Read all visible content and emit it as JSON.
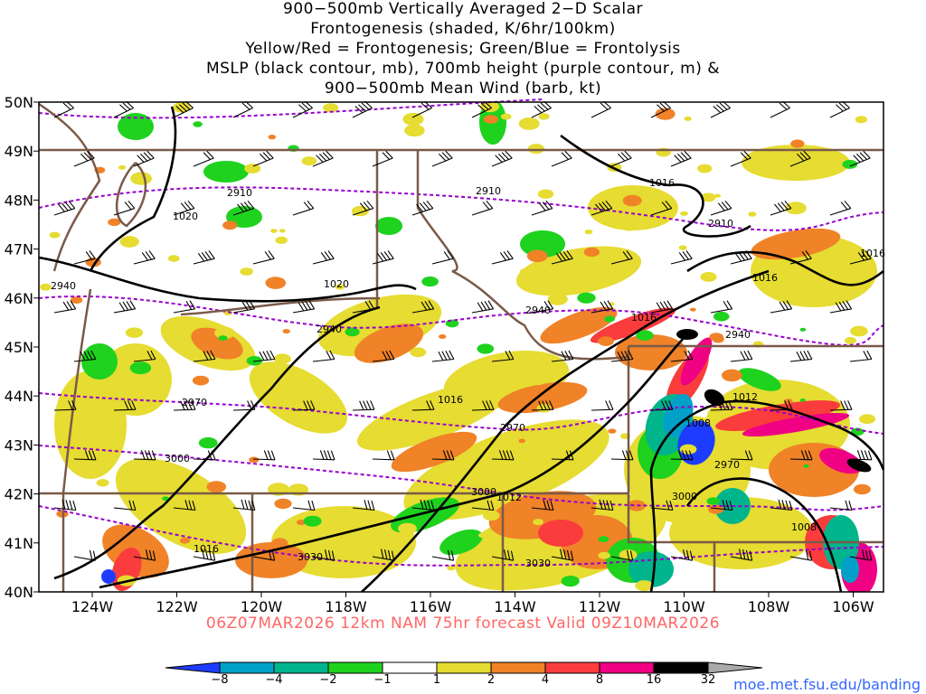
{
  "title": {
    "lines": [
      "900−500mb Vertically Averaged 2−D Scalar",
      "Frontogenesis (shaded, K/6hr/100km)",
      "Yellow/Red = Frontogenesis;  Green/Blue = Frontolysis",
      "MSLP (black contour, mb), 700mb height (purple contour, m) &",
      "900−500mb Mean Wind (barb, kt)"
    ]
  },
  "map": {
    "lat_labels": [
      "50N",
      "49N",
      "48N",
      "47N",
      "46N",
      "45N",
      "44N",
      "43N",
      "42N",
      "41N",
      "40N"
    ],
    "lon_labels": [
      "124W",
      "122W",
      "120W",
      "118W",
      "116W",
      "114W",
      "112W",
      "110W",
      "108W",
      "106W"
    ],
    "mslp_labels": [
      "1020",
      "1020",
      "1016",
      "1016",
      "1016",
      "1016",
      "1012",
      "1012",
      "1008",
      "1008",
      "1016",
      "1016"
    ],
    "height_labels": [
      "2910",
      "2910",
      "2910",
      "2940",
      "2940",
      "2940",
      "2940",
      "2970",
      "2970",
      "2970",
      "3000",
      "3000",
      "3000",
      "3030",
      "3030"
    ],
    "colors": {
      "state_border": "#7a5a48",
      "mslp": "#000000",
      "height": "#9900cc",
      "fronto_yellow": "#e6dc32",
      "fronto_orange": "#f08228",
      "fronto_red": "#fa3c3c",
      "fronto_magenta": "#f00082",
      "fronto_black": "#000000",
      "frontolysis_green": "#1ed21e",
      "frontolysis_teal": "#00b48c",
      "frontolysis_cyan": "#00a0c8",
      "frontolysis_blue": "#1e3cff"
    }
  },
  "valid_text": "06Z07MAR2026 12km NAM 75hr forecast Valid 09Z10MAR2026",
  "colorbar": {
    "labels": [
      "−8",
      "−4",
      "−2",
      "−1",
      "1",
      "2",
      "4",
      "8",
      "16",
      "32"
    ],
    "colors": [
      "#1e3cff",
      "#00a0c8",
      "#00b48c",
      "#1ed21e",
      "#ffffff",
      "#e6dc32",
      "#f08228",
      "#fa3c3c",
      "#f00082",
      "#000000",
      "#aaaaaa"
    ]
  },
  "credit": "moe.met.fsu.edu/banding"
}
